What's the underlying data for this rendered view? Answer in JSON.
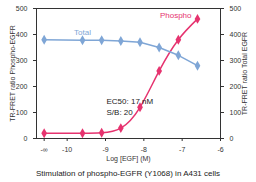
{
  "chart_data": {
    "type": "line",
    "title": "Stimulation of phospho-EGFR (Y1068) in A431 cells",
    "x_label": "Log [EGF] (M)",
    "y_label": "TR-FRET ratio Phospho-EGFR",
    "y2_label": "TR-FRET ratio Total EGFR",
    "log": "x",
    "x": [
      -10.6,
      -9.6,
      -9.1,
      -8.6,
      -8.1,
      -7.6,
      -7.1,
      -6.6
    ],
    "xlim": [
      -10.8,
      -6
    ],
    "xticks": [
      {
        "value": -10.6,
        "label": "-∞"
      },
      -10,
      -9,
      -8,
      -7,
      -6
    ],
    "ylim": [
      0,
      500
    ],
    "yticks": [
      0,
      100,
      200,
      300,
      400,
      500
    ],
    "y2lim": [
      0,
      500
    ],
    "y2ticks": [
      0,
      100,
      200,
      300,
      400,
      500
    ],
    "series": [
      {
        "name": "Phospho",
        "color": "#e6336f",
        "marker": "diamond",
        "line_style": "solid",
        "values": [
          20,
          20,
          22,
          40,
          120,
          260,
          380,
          460
        ]
      },
      {
        "name": "Total",
        "color": "#7fa6d6",
        "marker": "diamond",
        "line_style": "solid",
        "axis": "y2",
        "values": [
          380,
          378,
          378,
          375,
          370,
          350,
          320,
          280
        ]
      }
    ],
    "annotations": [
      "EC50: 17 nM",
      "S/B: 20"
    ]
  }
}
